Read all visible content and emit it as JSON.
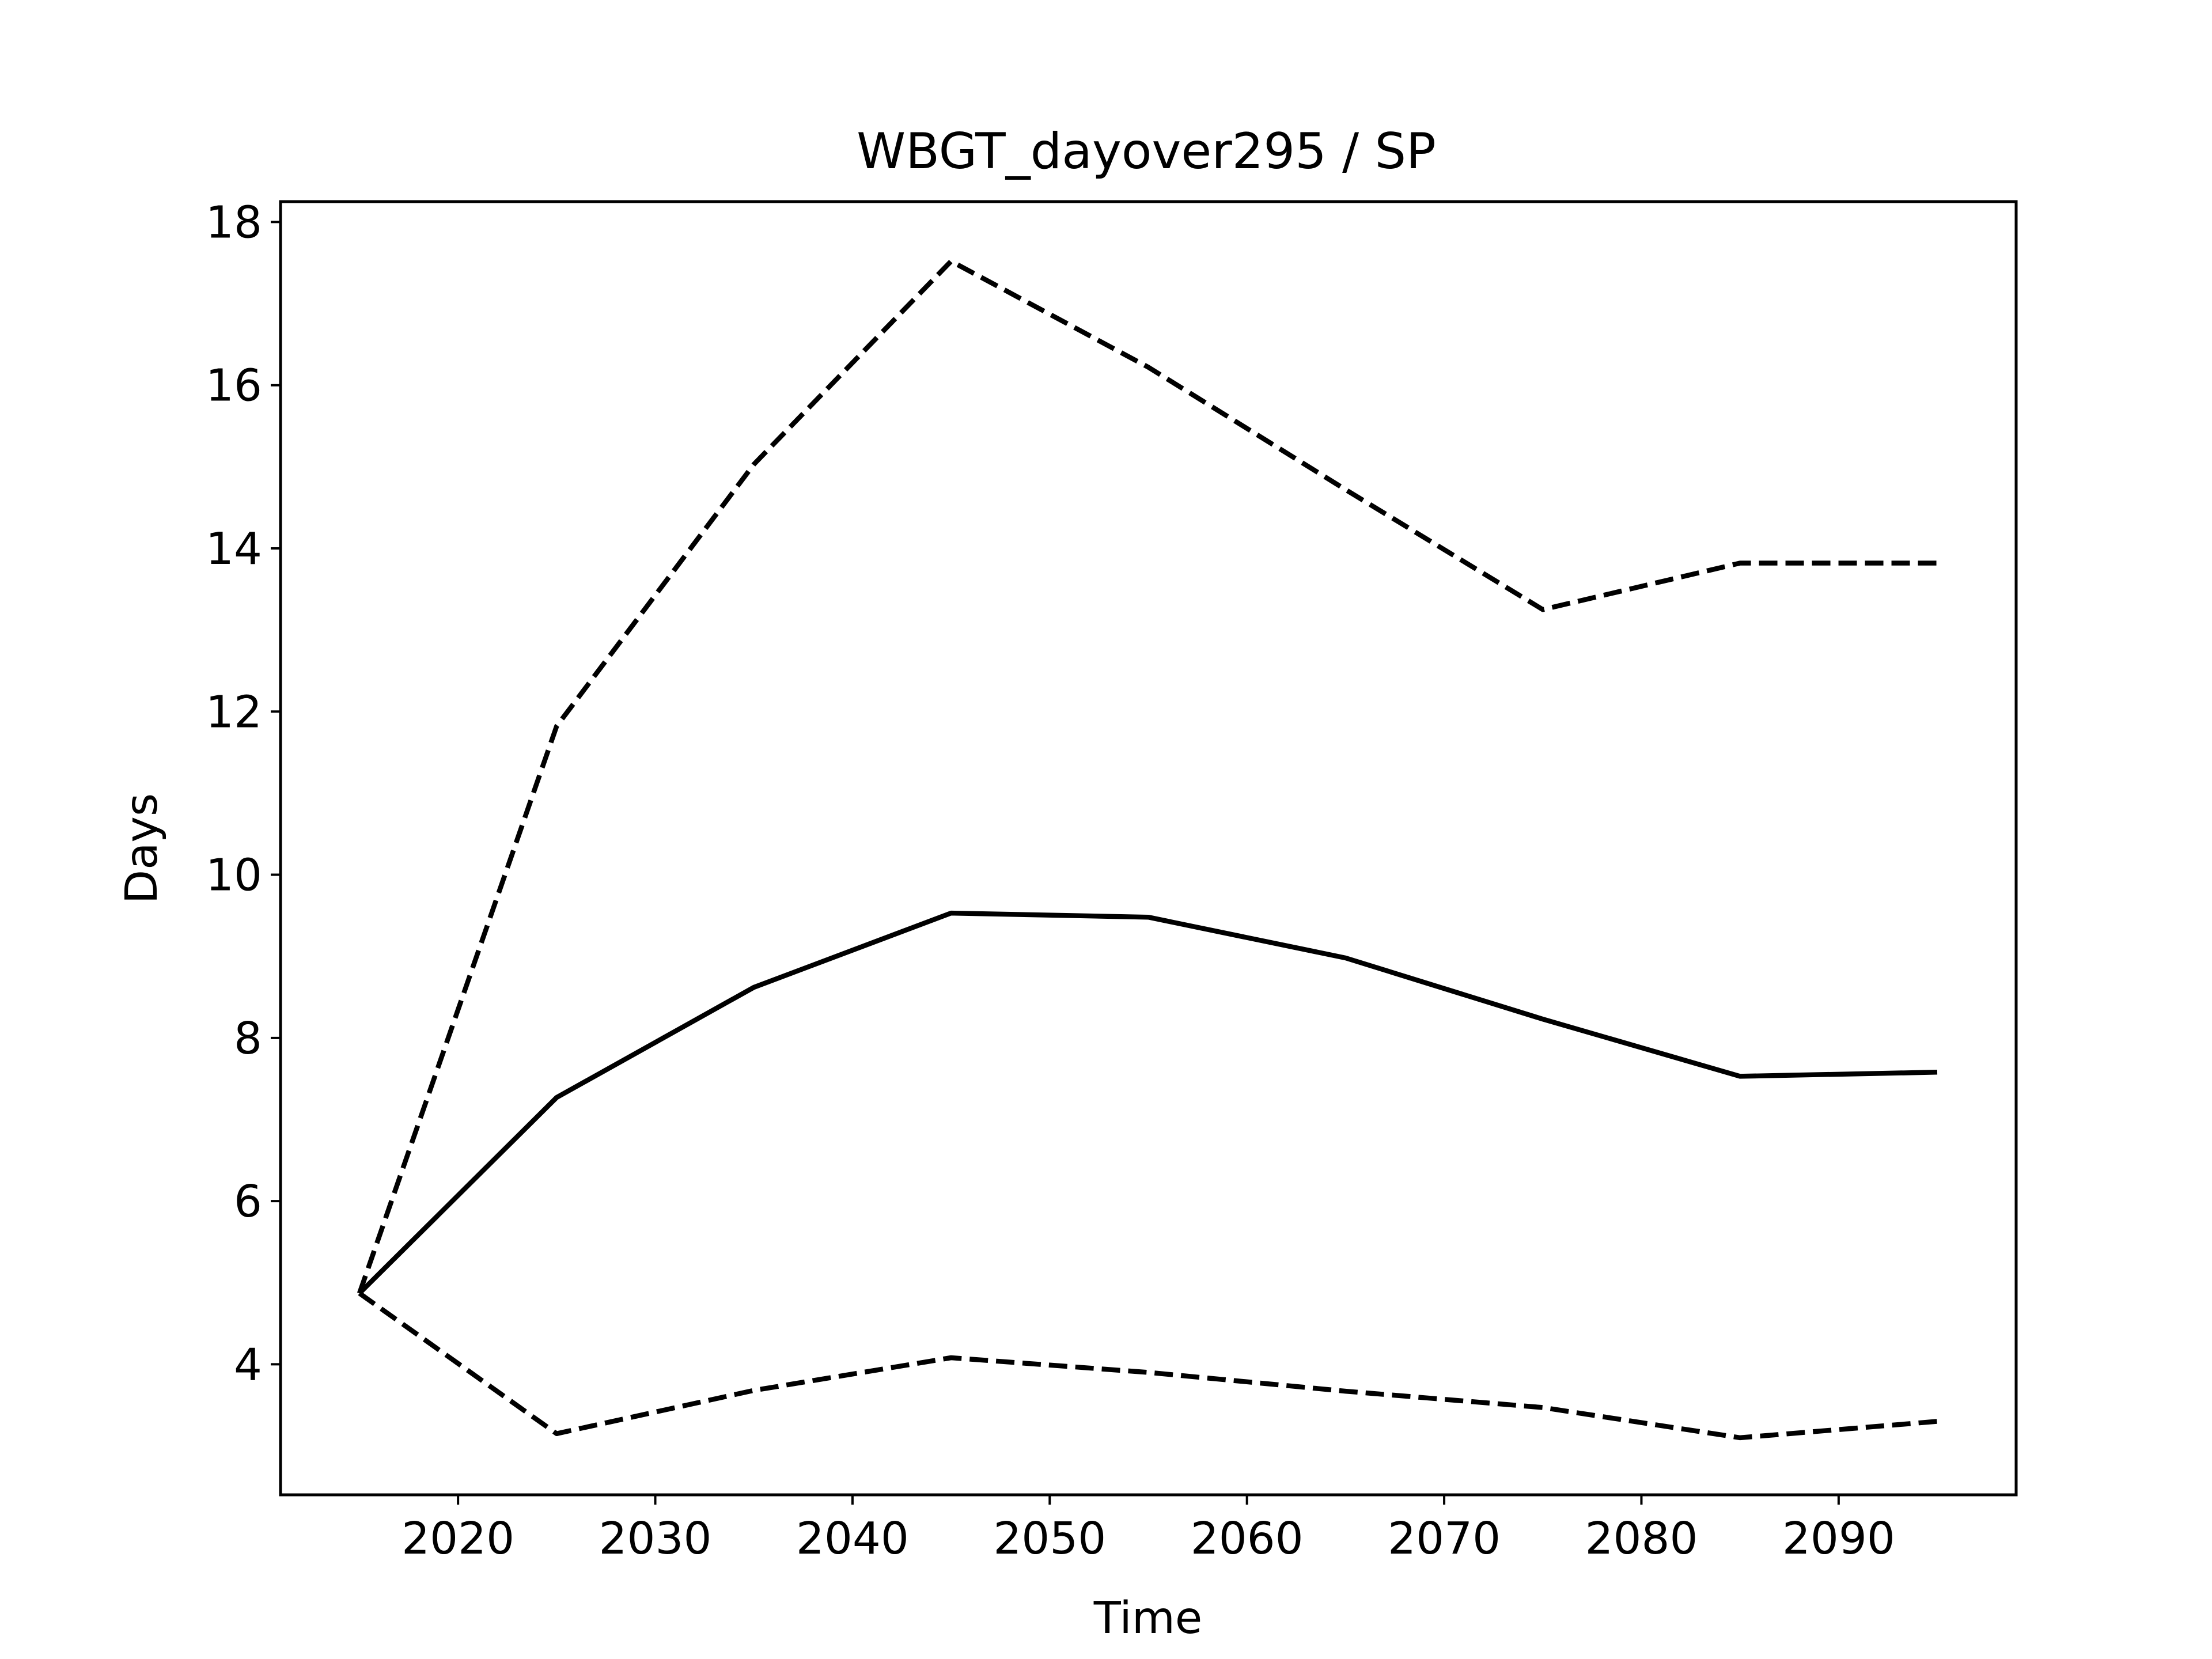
{
  "chart_data": {
    "type": "line",
    "title": "WBGT_dayover295 / SP",
    "xlabel": "Time",
    "ylabel": "Days",
    "xlim": [
      2011,
      2099
    ],
    "ylim": [
      2.4,
      18.25
    ],
    "xticks": [
      2020,
      2030,
      2040,
      2050,
      2060,
      2070,
      2080,
      2090
    ],
    "yticks": [
      4,
      6,
      8,
      10,
      12,
      14,
      16,
      18
    ],
    "grid": false,
    "x": [
      2015,
      2025,
      2035,
      2045,
      2055,
      2065,
      2075,
      2085,
      2095
    ],
    "series": [
      {
        "style": "solid",
        "color": "#000000",
        "values": [
          4.87,
          7.27,
          8.62,
          9.53,
          9.48,
          8.98,
          8.23,
          7.53,
          7.58
        ]
      },
      {
        "style": "dashed",
        "color": "#000000",
        "values": [
          4.87,
          11.82,
          15.03,
          17.52,
          16.22,
          14.72,
          13.25,
          13.82,
          13.82
        ]
      },
      {
        "style": "dashed",
        "color": "#000000",
        "values": [
          4.87,
          3.15,
          3.68,
          4.08,
          3.9,
          3.67,
          3.47,
          3.1,
          3.3
        ]
      }
    ]
  }
}
